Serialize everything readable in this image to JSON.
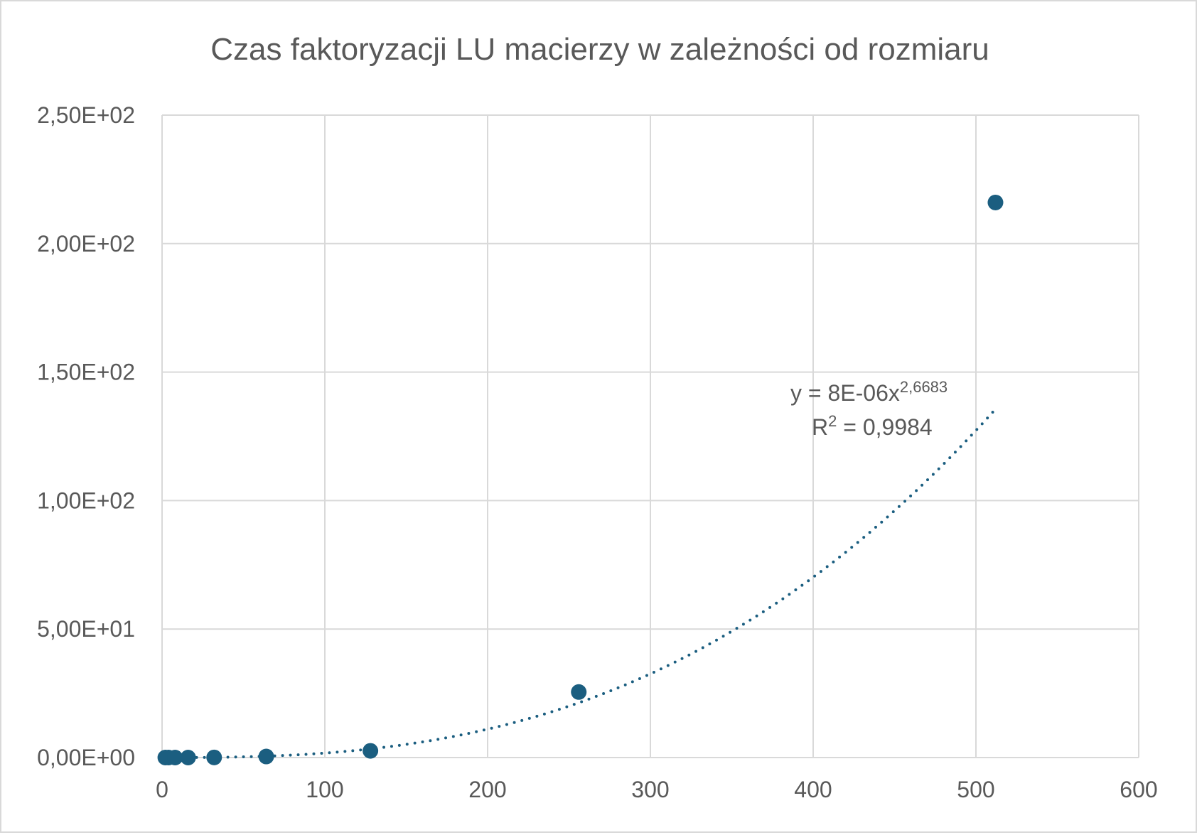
{
  "chart_data": {
    "type": "scatter",
    "title": "Czas faktoryzacji LU macierzy w zależności od rozmiaru",
    "xlabel": "",
    "ylabel": "",
    "xlim": [
      0,
      600
    ],
    "ylim": [
      0,
      250
    ],
    "x_ticks": [
      0,
      100,
      200,
      300,
      400,
      500,
      600
    ],
    "x_tick_labels": [
      "0",
      "100",
      "200",
      "300",
      "400",
      "500",
      "600"
    ],
    "y_ticks": [
      0,
      50,
      100,
      150,
      200,
      250
    ],
    "y_tick_labels": [
      "0,00E+00",
      "5,00E+01",
      "1,00E+02",
      "1,50E+02",
      "2,00E+02",
      "2,50E+02"
    ],
    "grid": true,
    "legend": "none",
    "series": [
      {
        "color": "#1b5e80",
        "points": [
          {
            "x": 2,
            "y": 0.0
          },
          {
            "x": 4,
            "y": 0.0
          },
          {
            "x": 8,
            "y": 0.0
          },
          {
            "x": 16,
            "y": 0.0
          },
          {
            "x": 32,
            "y": 0.05
          },
          {
            "x": 64,
            "y": 0.4
          },
          {
            "x": 128,
            "y": 2.6
          },
          {
            "x": 256,
            "y": 25.5
          },
          {
            "x": 512,
            "y": 216
          }
        ]
      }
    ],
    "trendline": {
      "type": "power",
      "coefficient": 8e-06,
      "exponent": 2.6683,
      "x_range": [
        2,
        512
      ],
      "style": "dotted",
      "color": "#1b5e80",
      "equation_prefix": "y = 8E-06x",
      "equation_exponent": "2,6683",
      "r2_base": "R",
      "r2_exponent": "2",
      "r2_value": " = 0,9984"
    },
    "colors": {
      "marker": "#1b5e80",
      "grid": "#d9d9d9",
      "text": "#595959"
    }
  }
}
